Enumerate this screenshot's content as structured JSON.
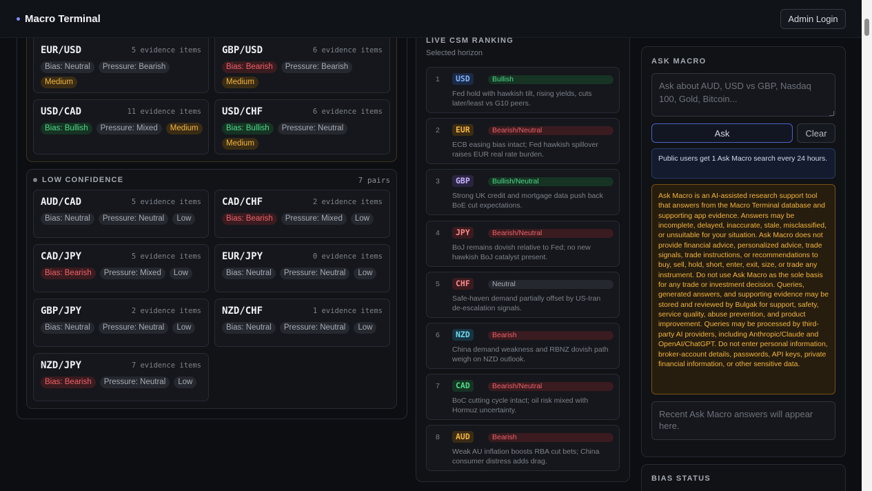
{
  "header": {
    "brand": "Macro Terminal",
    "admin_button": "Admin Login"
  },
  "medium_group": {
    "pairs": [
      {
        "name": "EUR/USD",
        "evidence": "5 evidence items",
        "tags": [
          {
            "text": "Bias: Neutral",
            "kind": "neutral"
          },
          {
            "text": "Pressure: Bearish",
            "kind": "neutral"
          },
          {
            "text": "Medium",
            "kind": "medium"
          }
        ]
      },
      {
        "name": "GBP/USD",
        "evidence": "6 evidence items",
        "tags": [
          {
            "text": "Bias: Bearish",
            "kind": "bearish"
          },
          {
            "text": "Pressure: Bearish",
            "kind": "neutral"
          },
          {
            "text": "Medium",
            "kind": "medium"
          }
        ]
      },
      {
        "name": "USD/CAD",
        "evidence": "11 evidence items",
        "tags": [
          {
            "text": "Bias: Bullish",
            "kind": "bullish"
          },
          {
            "text": "Pressure: Mixed",
            "kind": "neutral"
          },
          {
            "text": "Medium",
            "kind": "medium"
          }
        ]
      },
      {
        "name": "USD/CHF",
        "evidence": "6 evidence items",
        "tags": [
          {
            "text": "Bias: Bullish",
            "kind": "bullish"
          },
          {
            "text": "Pressure: Neutral",
            "kind": "neutral"
          },
          {
            "text": "Medium",
            "kind": "medium"
          }
        ]
      }
    ]
  },
  "low_group": {
    "title": "LOW CONFIDENCE",
    "count": "7 pairs",
    "pairs": [
      {
        "name": "AUD/CAD",
        "evidence": "5 evidence items",
        "tags": [
          {
            "text": "Bias: Neutral",
            "kind": "neutral"
          },
          {
            "text": "Pressure: Neutral",
            "kind": "neutral"
          },
          {
            "text": "Low",
            "kind": "low"
          }
        ]
      },
      {
        "name": "CAD/CHF",
        "evidence": "2 evidence items",
        "tags": [
          {
            "text": "Bias: Bearish",
            "kind": "bearish"
          },
          {
            "text": "Pressure: Mixed",
            "kind": "neutral"
          },
          {
            "text": "Low",
            "kind": "low"
          }
        ]
      },
      {
        "name": "CAD/JPY",
        "evidence": "5 evidence items",
        "tags": [
          {
            "text": "Bias: Bearish",
            "kind": "bearish"
          },
          {
            "text": "Pressure: Mixed",
            "kind": "neutral"
          },
          {
            "text": "Low",
            "kind": "low"
          }
        ]
      },
      {
        "name": "EUR/JPY",
        "evidence": "0 evidence items",
        "tags": [
          {
            "text": "Bias: Neutral",
            "kind": "neutral"
          },
          {
            "text": "Pressure: Neutral",
            "kind": "neutral"
          },
          {
            "text": "Low",
            "kind": "low"
          }
        ]
      },
      {
        "name": "GBP/JPY",
        "evidence": "2 evidence items",
        "tags": [
          {
            "text": "Bias: Neutral",
            "kind": "neutral"
          },
          {
            "text": "Pressure: Neutral",
            "kind": "neutral"
          },
          {
            "text": "Low",
            "kind": "low"
          }
        ]
      },
      {
        "name": "NZD/CHF",
        "evidence": "1 evidence items",
        "tags": [
          {
            "text": "Bias: Neutral",
            "kind": "neutral"
          },
          {
            "text": "Pressure: Neutral",
            "kind": "neutral"
          },
          {
            "text": "Low",
            "kind": "low"
          }
        ]
      },
      {
        "name": "NZD/JPY",
        "evidence": "7 evidence items",
        "tags": [
          {
            "text": "Bias: Bearish",
            "kind": "bearish"
          },
          {
            "text": "Pressure: Neutral",
            "kind": "neutral"
          },
          {
            "text": "Low",
            "kind": "low"
          }
        ]
      }
    ]
  },
  "csm": {
    "title": "LIVE CSM RANKING",
    "subtitle": "Selected horizon",
    "items": [
      {
        "rank": "1",
        "ccy": "USD",
        "ccy_color": "#7fb2ff",
        "ccy_bg": "#1b2a45",
        "bias": "Bullish",
        "kind": "bull",
        "desc": "Fed hold with hawkish tilt, rising yields, cuts later/least vs G10 peers."
      },
      {
        "rank": "2",
        "ccy": "EUR",
        "ccy_color": "#f4b53f",
        "ccy_bg": "#3a2c14",
        "bias": "Bearish/Neutral",
        "kind": "bear",
        "desc": "ECB easing bias intact; Fed hawkish spillover raises EUR real rate burden."
      },
      {
        "rank": "3",
        "ccy": "GBP",
        "ccy_color": "#c8b4ff",
        "ccy_bg": "#2b2440",
        "bias": "Bullish/Neutral",
        "kind": "bull",
        "desc": "Strong UK credit and mortgage data push back BoE cut expectations."
      },
      {
        "rank": "4",
        "ccy": "JPY",
        "ccy_color": "#ff8a8a",
        "ccy_bg": "#3a1b1f",
        "bias": "Bearish/Neutral",
        "kind": "bear",
        "desc": "BoJ remains dovish relative to Fed; no new hawkish BoJ catalyst present."
      },
      {
        "rank": "5",
        "ccy": "CHF",
        "ccy_color": "#ff8a8a",
        "ccy_bg": "#3a1b1f",
        "bias": "Neutral",
        "kind": "neut",
        "desc": "Safe-haven demand partially offset by US-Iran de-escalation signals."
      },
      {
        "rank": "6",
        "ccy": "NZD",
        "ccy_color": "#6fd8f0",
        "ccy_bg": "#173440",
        "bias": "Bearish",
        "kind": "bear",
        "desc": "China demand weakness and RBNZ dovish path weigh on NZD outlook."
      },
      {
        "rank": "7",
        "ccy": "CAD",
        "ccy_color": "#4fdc8a",
        "ccy_bg": "#163323",
        "bias": "Bearish/Neutral",
        "kind": "bear",
        "desc": "BoC cutting cycle intact; oil risk mixed with Hormuz uncertainty."
      },
      {
        "rank": "8",
        "ccy": "AUD",
        "ccy_color": "#f4b53f",
        "ccy_bg": "#3a2c14",
        "bias": "Bearish",
        "kind": "bear",
        "desc": "Weak AU inflation boosts RBA cut bets; China consumer distress adds drag."
      }
    ]
  },
  "ask": {
    "title": "ASK MACRO",
    "placeholder": "Ask about AUD, USD vs GBP, Nasdaq 100, Gold, Bitcoin...",
    "ask_button": "Ask",
    "clear_button": "Clear",
    "info": "Public users get 1 Ask Macro search every 24 hours.",
    "disclaimer": "Ask Macro is an AI-assisted research support tool that answers from the Macro Terminal database and supporting app evidence. Answers may be incomplete, delayed, inaccurate, stale, misclassified, or unsuitable for your situation. Ask Macro does not provide financial advice, personalized advice, trade signals, trade instructions, or recommendations to buy, sell, hold, short, enter, exit, size, or trade any instrument. Do not use Ask Macro as the sole basis for any trade or investment decision. Queries, generated answers, and supporting evidence may be stored and reviewed by Bulgak for support, safety, service quality, abuse prevention, and product improvement. Queries may be processed by third-party AI providers, including Anthropic/Claude and OpenAI/ChatGPT. Do not enter personal information, broker-account details, passwords, API keys, private financial information, or other sensitive data.",
    "recent": "Recent Ask Macro answers will appear here."
  },
  "bias_status": {
    "title": "BIAS STATUS"
  }
}
